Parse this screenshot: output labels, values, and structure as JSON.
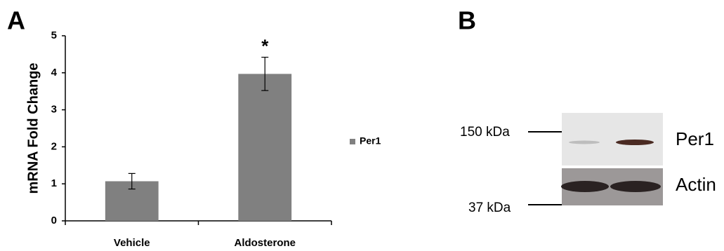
{
  "chart_data": {
    "type": "bar",
    "panel_label": "A",
    "ylabel": "mRNA Fold Change",
    "categories": [
      "Vehicle",
      "Aldosterone"
    ],
    "series": [
      {
        "name": "Per1",
        "color": "#808080",
        "values": [
          1.07,
          3.97
        ],
        "errors": [
          0.21,
          0.45
        ]
      }
    ],
    "significance": [
      null,
      "*"
    ],
    "ylim": [
      0,
      5
    ],
    "yticks": [
      0,
      1,
      2,
      3,
      4,
      5
    ],
    "grid": false,
    "legend": "right"
  },
  "blot": {
    "panel_label": "B",
    "markers": [
      "150 kDa",
      "37 kDa"
    ],
    "bands": [
      "Per1",
      "Actin"
    ]
  }
}
